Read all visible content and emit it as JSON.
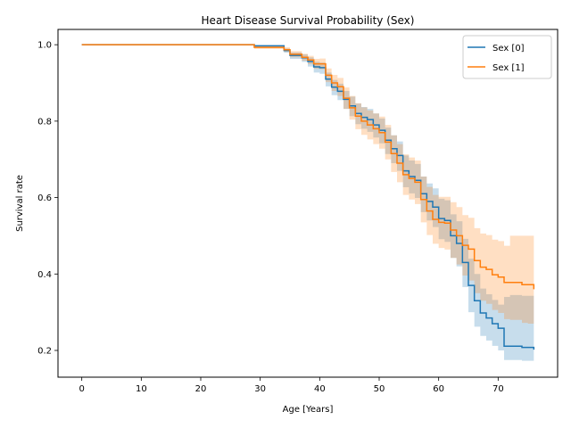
{
  "chart_data": {
    "type": "line",
    "title": "Heart Disease Survival Probability (Sex)",
    "xlabel": "Age [Years]",
    "ylabel": "Survival rate",
    "xlim": [
      -4,
      80
    ],
    "ylim": [
      0.13,
      1.04
    ],
    "xticks": [
      0,
      10,
      20,
      30,
      40,
      50,
      60,
      70
    ],
    "yticks": [
      0.2,
      0.4,
      0.6,
      0.8,
      1.0
    ],
    "ytick_labels": [
      "0.2",
      "0.4",
      "0.6",
      "0.8",
      "1.0"
    ],
    "legend_position": "top-right",
    "grid": false,
    "series": [
      {
        "name": "Sex [0]",
        "color": "#1f77b4",
        "band_color": "#1f77b4",
        "x": [
          0,
          28,
          29,
          33,
          34,
          35,
          36,
          37,
          38,
          39,
          40,
          41,
          42,
          43,
          44,
          45,
          46,
          47,
          48,
          49,
          50,
          51,
          52,
          53,
          54,
          55,
          56,
          57,
          58,
          59,
          60,
          61,
          62,
          63,
          64,
          65,
          66,
          67,
          68,
          69,
          70,
          71,
          72,
          73,
          74,
          75,
          76
        ],
        "y": [
          1.0,
          1.0,
          0.997,
          0.997,
          0.985,
          0.972,
          0.972,
          0.966,
          0.956,
          0.942,
          0.94,
          0.91,
          0.889,
          0.878,
          0.857,
          0.84,
          0.82,
          0.81,
          0.804,
          0.79,
          0.776,
          0.75,
          0.728,
          0.71,
          0.67,
          0.655,
          0.645,
          0.61,
          0.59,
          0.575,
          0.545,
          0.54,
          0.5,
          0.48,
          0.43,
          0.37,
          0.33,
          0.298,
          0.285,
          0.27,
          0.258,
          0.211,
          0.211,
          0.211,
          0.208,
          0.208,
          0.202
        ],
        "lower": [
          1.0,
          1.0,
          0.993,
          0.993,
          0.979,
          0.963,
          0.963,
          0.955,
          0.943,
          0.927,
          0.924,
          0.891,
          0.868,
          0.855,
          0.832,
          0.813,
          0.792,
          0.78,
          0.772,
          0.757,
          0.742,
          0.714,
          0.69,
          0.67,
          0.627,
          0.611,
          0.599,
          0.562,
          0.54,
          0.523,
          0.491,
          0.484,
          0.442,
          0.42,
          0.366,
          0.3,
          0.262,
          0.238,
          0.226,
          0.212,
          0.2,
          0.175,
          0.175,
          0.175,
          0.173,
          0.173,
          0.17
        ],
        "upper": [
          1.0,
          1.0,
          0.999,
          0.999,
          0.99,
          0.98,
          0.98,
          0.975,
          0.967,
          0.955,
          0.953,
          0.927,
          0.908,
          0.898,
          0.879,
          0.864,
          0.846,
          0.837,
          0.832,
          0.82,
          0.807,
          0.783,
          0.763,
          0.747,
          0.71,
          0.697,
          0.688,
          0.655,
          0.637,
          0.624,
          0.597,
          0.593,
          0.556,
          0.538,
          0.492,
          0.44,
          0.4,
          0.362,
          0.347,
          0.332,
          0.32,
          0.34,
          0.345,
          0.345,
          0.343,
          0.343,
          0.336
        ]
      },
      {
        "name": "Sex [1]",
        "color": "#ff7f0e",
        "band_color": "#ff7f0e",
        "x": [
          0,
          28,
          29,
          33,
          34,
          35,
          36,
          37,
          38,
          39,
          40,
          41,
          42,
          43,
          44,
          45,
          46,
          47,
          48,
          49,
          50,
          51,
          52,
          53,
          54,
          55,
          56,
          57,
          58,
          59,
          60,
          61,
          62,
          63,
          64,
          65,
          66,
          67,
          68,
          69,
          70,
          71,
          72,
          73,
          74,
          75,
          76
        ],
        "y": [
          1.0,
          1.0,
          0.993,
          0.993,
          0.987,
          0.975,
          0.975,
          0.967,
          0.96,
          0.95,
          0.95,
          0.92,
          0.9,
          0.89,
          0.86,
          0.835,
          0.813,
          0.8,
          0.79,
          0.78,
          0.77,
          0.745,
          0.715,
          0.69,
          0.66,
          0.65,
          0.64,
          0.595,
          0.565,
          0.543,
          0.535,
          0.533,
          0.515,
          0.5,
          0.475,
          0.465,
          0.435,
          0.418,
          0.412,
          0.398,
          0.392,
          0.378,
          0.378,
          0.378,
          0.372,
          0.372,
          0.36
        ],
        "lower": [
          1.0,
          1.0,
          0.989,
          0.989,
          0.981,
          0.967,
          0.967,
          0.958,
          0.949,
          0.937,
          0.936,
          0.902,
          0.879,
          0.866,
          0.832,
          0.804,
          0.779,
          0.764,
          0.752,
          0.74,
          0.728,
          0.7,
          0.667,
          0.64,
          0.607,
          0.595,
          0.583,
          0.535,
          0.502,
          0.479,
          0.468,
          0.464,
          0.442,
          0.425,
          0.396,
          0.383,
          0.35,
          0.33,
          0.322,
          0.306,
          0.298,
          0.282,
          0.28,
          0.28,
          0.272,
          0.27,
          0.255
        ],
        "upper": [
          1.0,
          1.0,
          0.997,
          0.997,
          0.993,
          0.983,
          0.983,
          0.976,
          0.971,
          0.963,
          0.964,
          0.938,
          0.921,
          0.913,
          0.888,
          0.866,
          0.847,
          0.836,
          0.828,
          0.82,
          0.812,
          0.79,
          0.763,
          0.74,
          0.713,
          0.705,
          0.697,
          0.655,
          0.628,
          0.607,
          0.602,
          0.602,
          0.588,
          0.575,
          0.554,
          0.547,
          0.52,
          0.506,
          0.502,
          0.49,
          0.486,
          0.474,
          0.5,
          0.5,
          0.5,
          0.5,
          0.496
        ]
      }
    ]
  }
}
